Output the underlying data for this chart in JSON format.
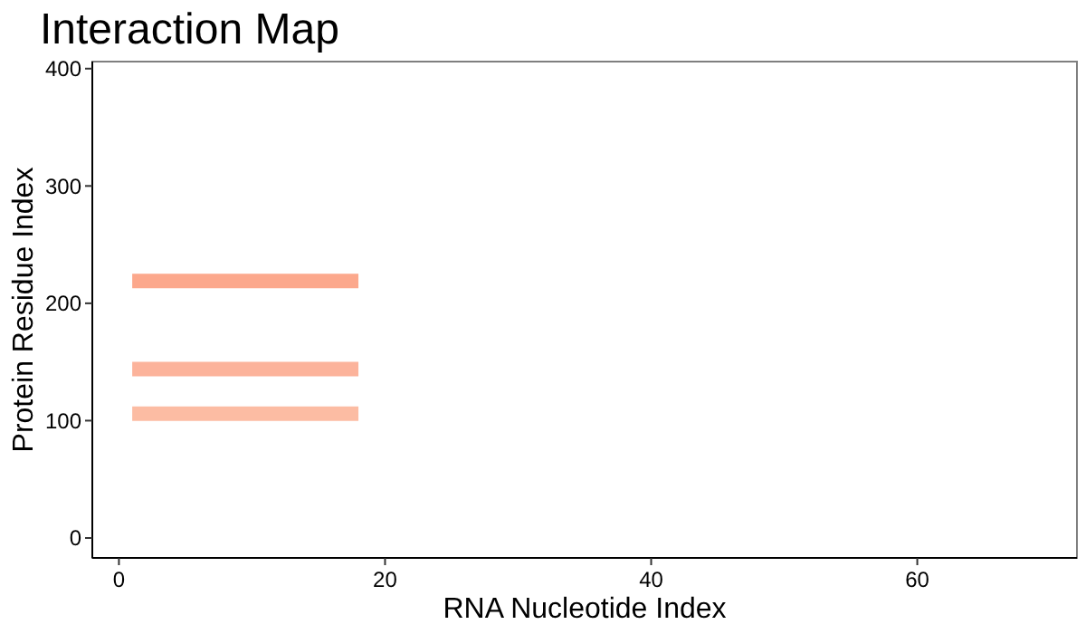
{
  "chart_data": {
    "type": "line",
    "title": "Interaction Map",
    "xlabel": "RNA Nucleotide Index",
    "ylabel": "Protein Residue Index",
    "xlim": [
      -2,
      72
    ],
    "ylim": [
      -17,
      406
    ],
    "xticks": [
      0,
      20,
      40,
      60
    ],
    "yticks": [
      0,
      100,
      200,
      300,
      400
    ],
    "grid": false,
    "marker": "none",
    "line_style": "solid",
    "x": [
      1,
      18
    ],
    "series": [
      {
        "color": "#fca88c",
        "values": [
          219,
          219
        ]
      },
      {
        "color": "#fcb39b",
        "values": [
          144,
          144
        ]
      },
      {
        "color": "#fcbca3",
        "values": [
          106,
          106
        ]
      }
    ]
  }
}
